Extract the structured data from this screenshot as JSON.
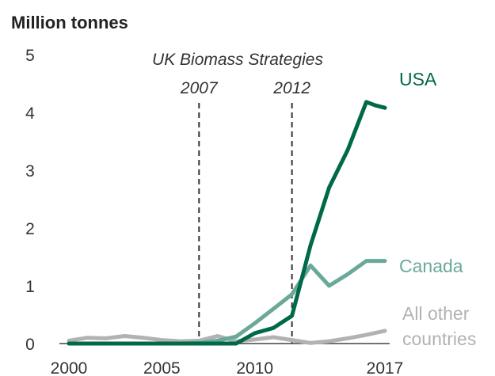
{
  "chart_data": {
    "type": "line",
    "ylabel": "Million tonnes",
    "xlabel": "",
    "title": "",
    "xlim": [
      2000,
      2017
    ],
    "ylim": [
      0,
      5
    ],
    "x_ticks": [
      {
        "value": 2000,
        "label": "2000"
      },
      {
        "value": 2005,
        "label": "2005"
      },
      {
        "value": 2010,
        "label": "2010"
      },
      {
        "value": 2017,
        "label": "2017"
      }
    ],
    "y_ticks": [
      {
        "value": 0,
        "label": "0"
      },
      {
        "value": 1,
        "label": "1"
      },
      {
        "value": 2,
        "label": "2"
      },
      {
        "value": 3,
        "label": "3"
      },
      {
        "value": 4,
        "label": "4"
      },
      {
        "value": 5,
        "label": "5"
      }
    ],
    "annotation": {
      "title": "UK Biomass Strategies",
      "lines": [
        {
          "x": 2007,
          "label": "2007"
        },
        {
          "x": 2012,
          "label": "2012"
        }
      ]
    },
    "grid": false,
    "legend": "inline labels at line ends",
    "series": [
      {
        "name": "USA",
        "color": "#00694a",
        "label_lines": [
          "USA"
        ],
        "points": [
          [
            2000,
            0
          ],
          [
            2001,
            0
          ],
          [
            2002,
            0
          ],
          [
            2003,
            0
          ],
          [
            2004,
            0
          ],
          [
            2005,
            0
          ],
          [
            2006,
            0
          ],
          [
            2007,
            0
          ],
          [
            2008,
            0
          ],
          [
            2009,
            0
          ],
          [
            2010,
            0.18
          ],
          [
            2011,
            0.27
          ],
          [
            2012,
            0.48
          ],
          [
            2013,
            1.7
          ],
          [
            2014,
            2.7
          ],
          [
            2015,
            3.35
          ],
          [
            2016,
            4.18
          ],
          [
            2016.5,
            4.12
          ],
          [
            2017,
            4.08
          ]
        ]
      },
      {
        "name": "Canada",
        "color": "#6aa99a",
        "label_lines": [
          "Canada"
        ],
        "points": [
          [
            2000,
            0
          ],
          [
            2001,
            0
          ],
          [
            2002,
            0
          ],
          [
            2003,
            0
          ],
          [
            2004,
            0
          ],
          [
            2005,
            0
          ],
          [
            2006,
            0
          ],
          [
            2007,
            0.01
          ],
          [
            2008,
            0.05
          ],
          [
            2009,
            0.12
          ],
          [
            2010,
            0.35
          ],
          [
            2011,
            0.6
          ],
          [
            2012,
            0.85
          ],
          [
            2013,
            1.35
          ],
          [
            2014,
            1.0
          ],
          [
            2015,
            1.2
          ],
          [
            2016,
            1.43
          ],
          [
            2017,
            1.43
          ]
        ]
      },
      {
        "name": "All other countries",
        "color": "#b2b2b2",
        "label_lines": [
          "All other",
          "countries"
        ],
        "points": [
          [
            2000,
            0.05
          ],
          [
            2001,
            0.1
          ],
          [
            2002,
            0.09
          ],
          [
            2003,
            0.13
          ],
          [
            2004,
            0.1
          ],
          [
            2005,
            0.06
          ],
          [
            2006,
            0.04
          ],
          [
            2007,
            0.05
          ],
          [
            2008,
            0.13
          ],
          [
            2009,
            0.04
          ],
          [
            2010,
            0.07
          ],
          [
            2011,
            0.11
          ],
          [
            2012,
            0.06
          ],
          [
            2013,
            0.01
          ],
          [
            2014,
            0.04
          ],
          [
            2015,
            0.09
          ],
          [
            2016,
            0.15
          ],
          [
            2017,
            0.22
          ]
        ]
      }
    ]
  }
}
